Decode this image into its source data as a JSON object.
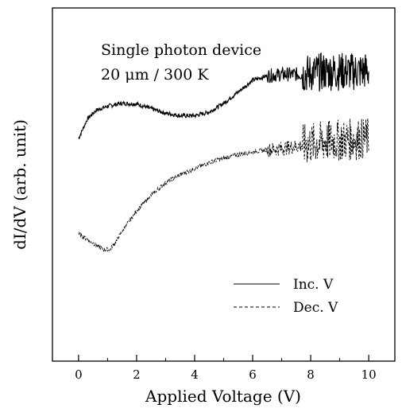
{
  "chart_data": {
    "type": "line",
    "title": "",
    "annotation_lines": [
      "Single photon device",
      "20 μm / 300 K"
    ],
    "xlabel": "Applied Voltage (V)",
    "ylabel": "dI/dV (arb. unit)",
    "xlim": [
      -0.9,
      10.9
    ],
    "ylim": [
      0,
      10
    ],
    "x_ticks": [
      0,
      2,
      4,
      6,
      8,
      10
    ],
    "x_tick_labels": [
      "0",
      "2",
      "4",
      "6",
      "8",
      "10"
    ],
    "y_tick_labels": [],
    "grid": false,
    "legend_position": "bottom-right",
    "series": [
      {
        "name": "Inc. V",
        "style": "solid",
        "x": [
          0.0,
          0.3,
          0.6,
          1.0,
          1.5,
          2.0,
          2.5,
          3.0,
          3.5,
          4.0,
          4.5,
          5.0,
          5.5,
          6.0,
          6.5,
          7.0,
          7.5,
          8.0,
          8.5,
          9.0,
          9.5,
          10.0
        ],
        "y": [
          6.3,
          6.85,
          7.1,
          7.22,
          7.3,
          7.28,
          7.15,
          7.02,
          6.95,
          6.95,
          7.05,
          7.3,
          7.62,
          7.95,
          8.08,
          8.12,
          8.12,
          8.15,
          8.2,
          8.2,
          8.2,
          8.22
        ]
      },
      {
        "name": "Dec. V",
        "style": "dashed",
        "x": [
          0.0,
          0.3,
          0.6,
          0.9,
          1.1,
          1.3,
          1.6,
          2.0,
          2.5,
          3.0,
          3.5,
          4.0,
          4.5,
          5.0,
          5.5,
          6.0,
          6.5,
          7.0,
          7.5,
          8.0,
          8.5,
          9.0,
          9.5,
          10.0
        ],
        "y": [
          3.6,
          3.45,
          3.28,
          3.15,
          3.18,
          3.4,
          3.8,
          4.25,
          4.7,
          5.05,
          5.28,
          5.45,
          5.62,
          5.75,
          5.85,
          5.92,
          5.98,
          6.02,
          6.08,
          6.15,
          6.22,
          6.25,
          6.28,
          6.3
        ]
      }
    ]
  }
}
